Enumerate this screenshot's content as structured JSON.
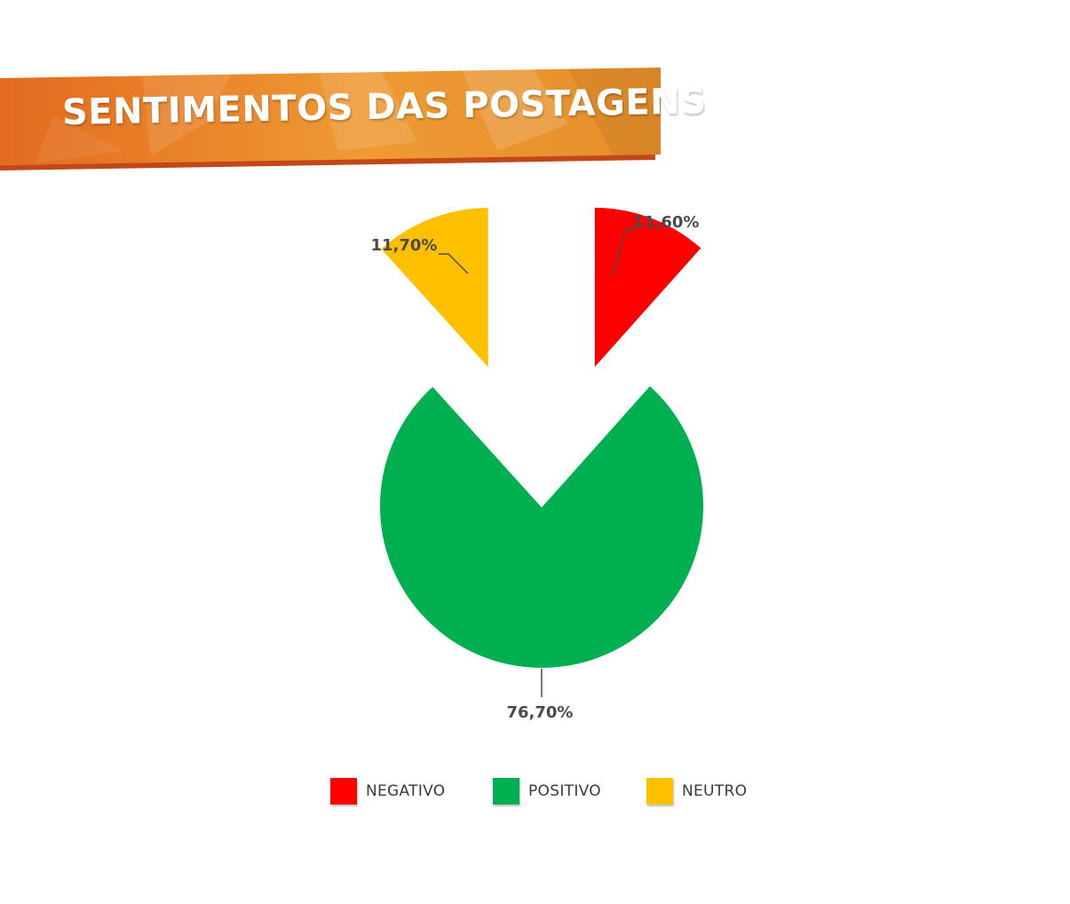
{
  "title": "SENTIMENTOS DAS POSTAGENS",
  "colors": {
    "banner_light": "#f2a73b",
    "banner_dark": "#e2651e",
    "negativo": "#ff0000",
    "positivo": "#00b050",
    "neutro": "#ffc000"
  },
  "chart_data": {
    "type": "pie",
    "slices": [
      {
        "name": "NEGATIVO",
        "value": 11.6,
        "label": "11,60%",
        "color": "#ff0000"
      },
      {
        "name": "POSITIVO",
        "value": 76.7,
        "label": "76,70%",
        "color": "#00b050"
      },
      {
        "name": "NEUTRO",
        "value": 11.7,
        "label": "11,70%",
        "color": "#ffc000"
      }
    ],
    "legend": "bottom"
  }
}
